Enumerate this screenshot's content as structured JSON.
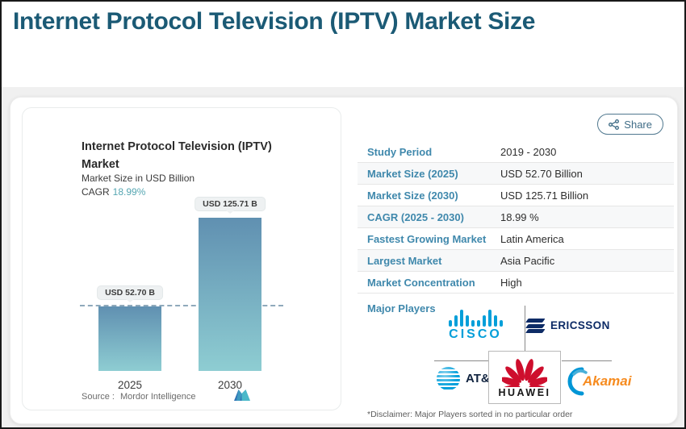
{
  "header": {
    "title": "Internet Protocol Television (IPTV) Market Size"
  },
  "share": {
    "label": "Share"
  },
  "chart_card": {
    "title_line1": "Internet Protocol Television (IPTV)",
    "title_line2": "Market",
    "subtitle": "Market Size in USD Billion",
    "cagr_label": "CAGR",
    "cagr_value": "18.99%",
    "source_label": "Source :",
    "source_value": "Mordor Intelligence"
  },
  "chart_data": {
    "type": "bar",
    "categories": [
      "2025",
      "2030"
    ],
    "values": [
      52.7,
      125.71
    ],
    "bar_labels": [
      "USD 52.70 B",
      "USD 125.71 B"
    ],
    "title": "Internet Protocol Television (IPTV) Market",
    "subtitle": "Market Size in USD Billion",
    "cagr": "18.99%",
    "ylabel": "USD Billion",
    "ylim": [
      0,
      140
    ],
    "grid": false,
    "reference_line": {
      "y": 52.7,
      "style": "dashed"
    },
    "bar_gradient_top": "#6090b1",
    "bar_gradient_bottom": "#8ecdd2"
  },
  "stats": {
    "rows": [
      {
        "label": "Study Period",
        "value": "2019 - 2030"
      },
      {
        "label": "Market Size (2025)",
        "value": "USD 52.70 Billion"
      },
      {
        "label": "Market Size (2030)",
        "value": "USD 125.71 Billion"
      },
      {
        "label": "CAGR (2025 - 2030)",
        "value": "18.99 %"
      },
      {
        "label": "Fastest Growing Market",
        "value": "Latin America"
      },
      {
        "label": "Largest Market",
        "value": "Asia Pacific"
      },
      {
        "label": "Market Concentration",
        "value": "High"
      }
    ],
    "major_players_label": "Major Players",
    "players": {
      "cisco": "CISCO",
      "ericsson": "ERICSSON",
      "att": "AT&T",
      "huawei": "HUAWEI",
      "akamai": "Akamai"
    }
  },
  "disclaimer": "*Disclaimer: Major Players sorted in no particular order",
  "colors": {
    "header_title": "#1b5a75",
    "stat_label": "#3f88ac",
    "cagr_accent": "#55a6b2",
    "cisco_blue": "#049fd9",
    "ericsson_navy": "#0d2b66",
    "att_blue": "#009fdb",
    "huawei_red": "#ce0e2d",
    "akamai_orange": "#f68b1f",
    "akamai_blue": "#0096d6"
  }
}
